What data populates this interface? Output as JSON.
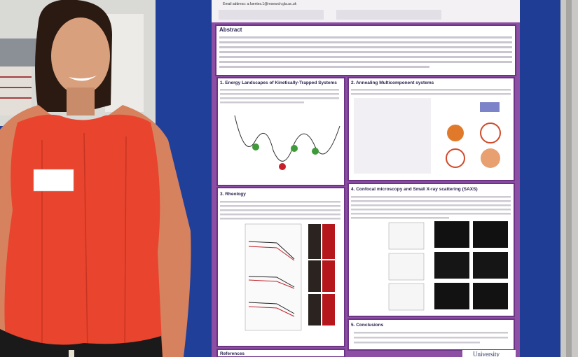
{
  "poster": {
    "email": "Email address: a.fuentes.1@research.gla.ac.uk",
    "abstract_title": "Abstract",
    "sections": [
      "1. Energy Landscapes of Kinetically-Trapped Systems",
      "2. Annealing Multicomponent systems",
      "3. Rheology",
      "4. Confocal microscopy and Small X-ray scattering (SAXS)",
      "5. Conclusions"
    ],
    "references_title": "References",
    "logo": "University"
  }
}
